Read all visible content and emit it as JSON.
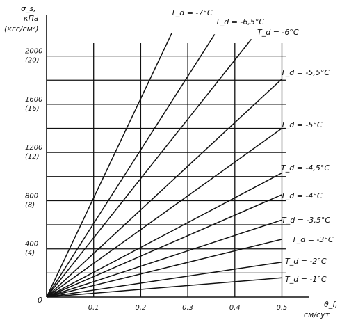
{
  "chart_data": {
    "type": "line",
    "title": "",
    "ylabel": {
      "symbol": "σ_s,",
      "unit1": "кПа",
      "unit2": "(кгс/см²)"
    },
    "xlabel": {
      "symbol": "ϑ_f,",
      "unit": "см/сут"
    },
    "origin_label": "0",
    "xlim": [
      0,
      0.55
    ],
    "ylim": [
      0,
      2000
    ],
    "grid": true,
    "x_ticks": [
      {
        "value": 0.1,
        "label": "0,1"
      },
      {
        "value": 0.2,
        "label": "0,2"
      },
      {
        "value": 0.3,
        "label": "0,3"
      },
      {
        "value": 0.4,
        "label": "0,4"
      },
      {
        "value": 0.5,
        "label": "0,5"
      }
    ],
    "y_ticks": [
      {
        "value": 400,
        "label": "400",
        "label2": "(4)"
      },
      {
        "value": 800,
        "label": "800",
        "label2": "(8)"
      },
      {
        "value": 1200,
        "label": "1200",
        "label2": "(12)"
      },
      {
        "value": 1600,
        "label": "1600",
        "label2": "(16)"
      },
      {
        "value": 2000,
        "label": "2000",
        "label2": "(20)"
      }
    ],
    "series": [
      {
        "name": "T_d = -1°C",
        "x": [
          0,
          0.5
        ],
        "y": [
          0,
          160
        ]
      },
      {
        "name": "T_d = -2°C",
        "x": [
          0,
          0.5
        ],
        "y": [
          0,
          290
        ]
      },
      {
        "name": "T_d = -3°C",
        "x": [
          0,
          0.5
        ],
        "y": [
          0,
          480
        ]
      },
      {
        "name": "T_d = -3,5°C",
        "x": [
          0,
          0.5
        ],
        "y": [
          0,
          640
        ]
      },
      {
        "name": "T_d = -4°C",
        "x": [
          0,
          0.5
        ],
        "y": [
          0,
          850
        ]
      },
      {
        "name": "T_d = -4,5°C",
        "x": [
          0,
          0.5
        ],
        "y": [
          0,
          1030
        ]
      },
      {
        "name": "T_d = -5°C",
        "x": [
          0,
          0.5
        ],
        "y": [
          0,
          1400
        ]
      },
      {
        "name": "T_d = -5,5°C",
        "x": [
          0,
          0.5
        ],
        "y": [
          0,
          1810
        ]
      },
      {
        "name": "T_d = -6°C",
        "x": [
          0,
          0.435
        ],
        "y": [
          0,
          2140
        ]
      },
      {
        "name": "T_d = -6,5°C",
        "x": [
          0,
          0.357
        ],
        "y": [
          0,
          2180
        ]
      },
      {
        "name": "T_d = -7°C",
        "x": [
          0,
          0.266
        ],
        "y": [
          0,
          2190
        ]
      }
    ]
  }
}
